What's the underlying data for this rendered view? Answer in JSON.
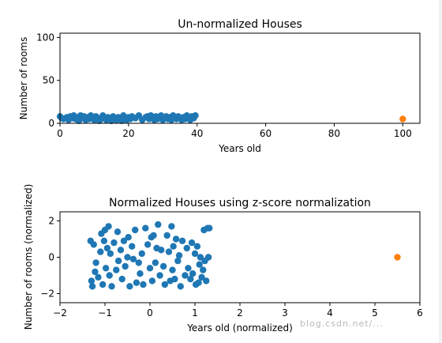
{
  "watermark": "blog.csdn.net/...",
  "chart_data": [
    {
      "type": "scatter",
      "title": "Un-normalized Houses",
      "xlabel": "Years old",
      "ylabel": "Number of rooms",
      "xlim": [
        0,
        105
      ],
      "ylim": [
        0,
        105
      ],
      "xticks": [
        0,
        20,
        40,
        60,
        80,
        100
      ],
      "yticks": [
        0,
        50,
        100
      ],
      "series": [
        {
          "color": "#1f77b4",
          "points": [
            [
              0,
              8
            ],
            [
              0.5,
              6
            ],
            [
              1,
              5
            ],
            [
              2,
              7
            ],
            [
              2.5,
              4
            ],
            [
              3,
              8
            ],
            [
              3.5,
              6
            ],
            [
              4,
              9
            ],
            [
              4.5,
              5
            ],
            [
              5,
              7
            ],
            [
              5.5,
              3
            ],
            [
              6,
              9
            ],
            [
              6.5,
              6
            ],
            [
              7,
              8
            ],
            [
              7.5,
              4
            ],
            [
              8,
              7
            ],
            [
              8.5,
              5
            ],
            [
              9,
              9
            ],
            [
              9.5,
              6
            ],
            [
              10,
              4
            ],
            [
              10.5,
              8
            ],
            [
              11,
              6
            ],
            [
              11.5,
              3
            ],
            [
              12,
              5
            ],
            [
              12.5,
              9
            ],
            [
              13,
              6
            ],
            [
              13.5,
              4
            ],
            [
              14,
              7
            ],
            [
              14.5,
              5
            ],
            [
              15,
              3
            ],
            [
              15.5,
              8
            ],
            [
              16,
              6
            ],
            [
              16.5,
              4
            ],
            [
              17,
              7
            ],
            [
              17.5,
              5
            ],
            [
              18,
              3
            ],
            [
              18.5,
              9
            ],
            [
              19,
              6
            ],
            [
              19.5,
              4
            ],
            [
              20,
              7
            ],
            [
              20.5,
              5
            ],
            [
              21,
              8
            ],
            [
              22,
              6
            ],
            [
              23,
              9
            ],
            [
              24,
              4
            ],
            [
              25,
              7
            ],
            [
              25.5,
              8
            ],
            [
              26,
              5
            ],
            [
              26.5,
              9
            ],
            [
              27,
              6
            ],
            [
              27.5,
              4
            ],
            [
              28,
              8
            ],
            [
              28.5,
              5
            ],
            [
              29,
              7
            ],
            [
              29.5,
              9
            ],
            [
              30,
              4
            ],
            [
              30.5,
              6
            ],
            [
              31,
              8
            ],
            [
              31.5,
              5
            ],
            [
              32,
              7
            ],
            [
              32.5,
              4
            ],
            [
              33,
              9
            ],
            [
              33.5,
              6
            ],
            [
              34,
              5
            ],
            [
              34.5,
              8
            ],
            [
              35,
              6
            ],
            [
              35.5,
              4
            ],
            [
              36,
              7
            ],
            [
              36.5,
              5
            ],
            [
              37,
              9
            ],
            [
              37.5,
              6
            ],
            [
              38,
              4
            ],
            [
              38.5,
              8
            ],
            [
              39,
              6
            ],
            [
              39.5,
              9
            ]
          ]
        },
        {
          "color": "#ff7f0e",
          "points": [
            [
              100,
              5
            ]
          ]
        }
      ]
    },
    {
      "type": "scatter",
      "title": "Normalized Houses using z-score normalization",
      "xlabel": "Years old (normalized)",
      "ylabel": "Number of rooms (normalized)",
      "xlim": [
        -2,
        6
      ],
      "ylim": [
        -2.5,
        2.5
      ],
      "xticks": [
        -2,
        -1,
        0,
        1,
        2,
        3,
        4,
        5,
        6
      ],
      "yticks": [
        -2,
        0,
        2
      ],
      "series": [
        {
          "color": "#1f77b4",
          "points": [
            [
              -1.32,
              0.9
            ],
            [
              -1.3,
              -1.3
            ],
            [
              -1.28,
              -1.6
            ],
            [
              -1.25,
              0.7
            ],
            [
              -1.22,
              -0.8
            ],
            [
              -1.2,
              -0.3
            ],
            [
              -1.15,
              -1.1
            ],
            [
              -1.1,
              0.3
            ],
            [
              -1.08,
              1.3
            ],
            [
              -1.05,
              -1.5
            ],
            [
              -1.02,
              0.9
            ],
            [
              -1.0,
              1.5
            ],
            [
              -0.98,
              -0.6
            ],
            [
              -0.95,
              0.5
            ],
            [
              -0.92,
              1.7
            ],
            [
              -0.9,
              -1.0
            ],
            [
              -0.88,
              0.2
            ],
            [
              -0.85,
              -1.6
            ],
            [
              -0.8,
              0.8
            ],
            [
              -0.75,
              -0.7
            ],
            [
              -0.72,
              1.4
            ],
            [
              -0.7,
              -0.2
            ],
            [
              -0.65,
              0.4
            ],
            [
              -0.62,
              -1.2
            ],
            [
              -0.58,
              0.9
            ],
            [
              -0.55,
              -0.5
            ],
            [
              -0.5,
              0.0
            ],
            [
              -0.48,
              1.1
            ],
            [
              -0.45,
              -1.6
            ],
            [
              -0.4,
              0.6
            ],
            [
              -0.37,
              -0.1
            ],
            [
              -0.33,
              1.5
            ],
            [
              -0.3,
              -1.4
            ],
            [
              -0.25,
              -0.3
            ],
            [
              -0.22,
              -0.9
            ],
            [
              -0.18,
              0.2
            ],
            [
              -0.15,
              -1.5
            ],
            [
              -0.1,
              1.6
            ],
            [
              -0.05,
              0.7
            ],
            [
              0.0,
              -0.6
            ],
            [
              0.03,
              1.1
            ],
            [
              0.05,
              -1.3
            ],
            [
              0.08,
              1.2
            ],
            [
              0.12,
              -0.3
            ],
            [
              0.15,
              0.5
            ],
            [
              0.18,
              1.8
            ],
            [
              0.22,
              -1.0
            ],
            [
              0.25,
              0.4
            ],
            [
              0.3,
              -0.5
            ],
            [
              0.33,
              -1.5
            ],
            [
              0.38,
              1.2
            ],
            [
              0.42,
              0.3
            ],
            [
              0.45,
              -1.3
            ],
            [
              0.48,
              1.7
            ],
            [
              0.5,
              -0.7
            ],
            [
              0.52,
              0.6
            ],
            [
              0.55,
              -1.2
            ],
            [
              0.58,
              1.0
            ],
            [
              0.62,
              -0.2
            ],
            [
              0.65,
              0.1
            ],
            [
              0.68,
              -1.6
            ],
            [
              0.72,
              0.9
            ],
            [
              0.78,
              -1.0
            ],
            [
              0.82,
              0.5
            ],
            [
              0.85,
              -0.6
            ],
            [
              0.9,
              -1.2
            ],
            [
              0.93,
              0.8
            ],
            [
              0.95,
              -0.9
            ],
            [
              1.0,
              0.2
            ],
            [
              1.02,
              -1.5
            ],
            [
              1.05,
              0.6
            ],
            [
              1.08,
              -1.4
            ],
            [
              1.1,
              -0.4
            ],
            [
              1.12,
              0.0
            ],
            [
              1.15,
              -1.1
            ],
            [
              1.18,
              -0.7
            ],
            [
              1.2,
              1.5
            ],
            [
              1.22,
              -0.2
            ],
            [
              1.25,
              -1.3
            ],
            [
              1.28,
              1.6
            ],
            [
              1.3,
              0.0
            ],
            [
              1.32,
              1.6
            ]
          ]
        },
        {
          "color": "#ff7f0e",
          "points": [
            [
              5.5,
              0.0
            ]
          ]
        }
      ]
    }
  ]
}
